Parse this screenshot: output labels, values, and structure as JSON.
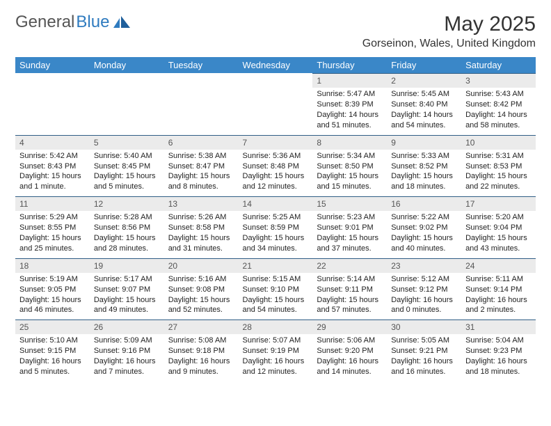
{
  "logo": {
    "word1": "General",
    "word2": "Blue"
  },
  "title": "May 2025",
  "location": "Gorseinon, Wales, United Kingdom",
  "colors": {
    "header_bg": "#3a87c8",
    "header_fg": "#ffffff",
    "daynum_bg": "#ebebeb",
    "rule": "#2f5d85",
    "logo_gray": "#555555",
    "logo_blue": "#2f7bbf"
  },
  "weekdays": [
    "Sunday",
    "Monday",
    "Tuesday",
    "Wednesday",
    "Thursday",
    "Friday",
    "Saturday"
  ],
  "weeks": [
    [
      null,
      null,
      null,
      null,
      {
        "n": "1",
        "sr": "Sunrise: 5:47 AM",
        "ss": "Sunset: 8:39 PM",
        "dl": "Daylight: 14 hours and 51 minutes."
      },
      {
        "n": "2",
        "sr": "Sunrise: 5:45 AM",
        "ss": "Sunset: 8:40 PM",
        "dl": "Daylight: 14 hours and 54 minutes."
      },
      {
        "n": "3",
        "sr": "Sunrise: 5:43 AM",
        "ss": "Sunset: 8:42 PM",
        "dl": "Daylight: 14 hours and 58 minutes."
      }
    ],
    [
      {
        "n": "4",
        "sr": "Sunrise: 5:42 AM",
        "ss": "Sunset: 8:43 PM",
        "dl": "Daylight: 15 hours and 1 minute."
      },
      {
        "n": "5",
        "sr": "Sunrise: 5:40 AM",
        "ss": "Sunset: 8:45 PM",
        "dl": "Daylight: 15 hours and 5 minutes."
      },
      {
        "n": "6",
        "sr": "Sunrise: 5:38 AM",
        "ss": "Sunset: 8:47 PM",
        "dl": "Daylight: 15 hours and 8 minutes."
      },
      {
        "n": "7",
        "sr": "Sunrise: 5:36 AM",
        "ss": "Sunset: 8:48 PM",
        "dl": "Daylight: 15 hours and 12 minutes."
      },
      {
        "n": "8",
        "sr": "Sunrise: 5:34 AM",
        "ss": "Sunset: 8:50 PM",
        "dl": "Daylight: 15 hours and 15 minutes."
      },
      {
        "n": "9",
        "sr": "Sunrise: 5:33 AM",
        "ss": "Sunset: 8:52 PM",
        "dl": "Daylight: 15 hours and 18 minutes."
      },
      {
        "n": "10",
        "sr": "Sunrise: 5:31 AM",
        "ss": "Sunset: 8:53 PM",
        "dl": "Daylight: 15 hours and 22 minutes."
      }
    ],
    [
      {
        "n": "11",
        "sr": "Sunrise: 5:29 AM",
        "ss": "Sunset: 8:55 PM",
        "dl": "Daylight: 15 hours and 25 minutes."
      },
      {
        "n": "12",
        "sr": "Sunrise: 5:28 AM",
        "ss": "Sunset: 8:56 PM",
        "dl": "Daylight: 15 hours and 28 minutes."
      },
      {
        "n": "13",
        "sr": "Sunrise: 5:26 AM",
        "ss": "Sunset: 8:58 PM",
        "dl": "Daylight: 15 hours and 31 minutes."
      },
      {
        "n": "14",
        "sr": "Sunrise: 5:25 AM",
        "ss": "Sunset: 8:59 PM",
        "dl": "Daylight: 15 hours and 34 minutes."
      },
      {
        "n": "15",
        "sr": "Sunrise: 5:23 AM",
        "ss": "Sunset: 9:01 PM",
        "dl": "Daylight: 15 hours and 37 minutes."
      },
      {
        "n": "16",
        "sr": "Sunrise: 5:22 AM",
        "ss": "Sunset: 9:02 PM",
        "dl": "Daylight: 15 hours and 40 minutes."
      },
      {
        "n": "17",
        "sr": "Sunrise: 5:20 AM",
        "ss": "Sunset: 9:04 PM",
        "dl": "Daylight: 15 hours and 43 minutes."
      }
    ],
    [
      {
        "n": "18",
        "sr": "Sunrise: 5:19 AM",
        "ss": "Sunset: 9:05 PM",
        "dl": "Daylight: 15 hours and 46 minutes."
      },
      {
        "n": "19",
        "sr": "Sunrise: 5:17 AM",
        "ss": "Sunset: 9:07 PM",
        "dl": "Daylight: 15 hours and 49 minutes."
      },
      {
        "n": "20",
        "sr": "Sunrise: 5:16 AM",
        "ss": "Sunset: 9:08 PM",
        "dl": "Daylight: 15 hours and 52 minutes."
      },
      {
        "n": "21",
        "sr": "Sunrise: 5:15 AM",
        "ss": "Sunset: 9:10 PM",
        "dl": "Daylight: 15 hours and 54 minutes."
      },
      {
        "n": "22",
        "sr": "Sunrise: 5:14 AM",
        "ss": "Sunset: 9:11 PM",
        "dl": "Daylight: 15 hours and 57 minutes."
      },
      {
        "n": "23",
        "sr": "Sunrise: 5:12 AM",
        "ss": "Sunset: 9:12 PM",
        "dl": "Daylight: 16 hours and 0 minutes."
      },
      {
        "n": "24",
        "sr": "Sunrise: 5:11 AM",
        "ss": "Sunset: 9:14 PM",
        "dl": "Daylight: 16 hours and 2 minutes."
      }
    ],
    [
      {
        "n": "25",
        "sr": "Sunrise: 5:10 AM",
        "ss": "Sunset: 9:15 PM",
        "dl": "Daylight: 16 hours and 5 minutes."
      },
      {
        "n": "26",
        "sr": "Sunrise: 5:09 AM",
        "ss": "Sunset: 9:16 PM",
        "dl": "Daylight: 16 hours and 7 minutes."
      },
      {
        "n": "27",
        "sr": "Sunrise: 5:08 AM",
        "ss": "Sunset: 9:18 PM",
        "dl": "Daylight: 16 hours and 9 minutes."
      },
      {
        "n": "28",
        "sr": "Sunrise: 5:07 AM",
        "ss": "Sunset: 9:19 PM",
        "dl": "Daylight: 16 hours and 12 minutes."
      },
      {
        "n": "29",
        "sr": "Sunrise: 5:06 AM",
        "ss": "Sunset: 9:20 PM",
        "dl": "Daylight: 16 hours and 14 minutes."
      },
      {
        "n": "30",
        "sr": "Sunrise: 5:05 AM",
        "ss": "Sunset: 9:21 PM",
        "dl": "Daylight: 16 hours and 16 minutes."
      },
      {
        "n": "31",
        "sr": "Sunrise: 5:04 AM",
        "ss": "Sunset: 9:23 PM",
        "dl": "Daylight: 16 hours and 18 minutes."
      }
    ]
  ]
}
